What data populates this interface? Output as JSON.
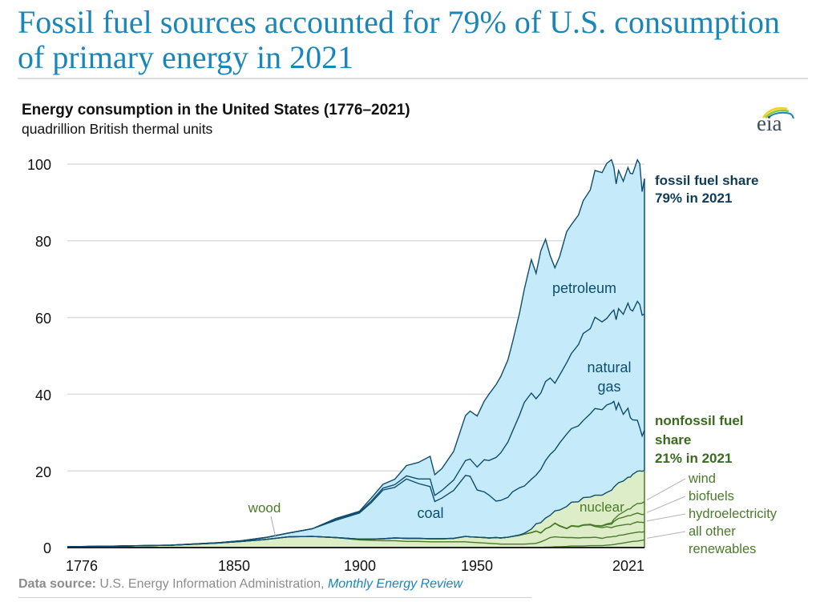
{
  "headline": "Fossil fuel sources accounted for 79% of U.S. consumption of primary energy in 2021",
  "logo_text": "eia",
  "logo_icon": "eia-logo-icon",
  "footer": {
    "label": "Data source:",
    "text": " U.S. Energy Information Administration, ",
    "link": "Monthly Energy Review"
  },
  "colors": {
    "fossil_fill": "#c5ebfb",
    "fossil_line": "#0f4c6e",
    "nonfossil_fill": "#dcedc8",
    "nonfossil_line": "#4a7a2a",
    "headline": "#1a86b8",
    "fossil_label": "#0e3b57",
    "nonfossil_label": "#3a6a1f"
  },
  "chart_data": {
    "type": "area",
    "title": "Energy consumption in the United States (1776–2021)",
    "subtitle": "quadrillion British thermal units",
    "xlabel": "",
    "ylabel": "quadrillion British thermal units",
    "xlim": [
      1776,
      2021
    ],
    "ylim": [
      0,
      100
    ],
    "grid": true,
    "x_ticks": [
      "1776",
      "1850",
      "1900",
      "1950",
      "2021"
    ],
    "y_ticks": [
      "0",
      "20",
      "40",
      "60",
      "80",
      "100"
    ],
    "stacked": true,
    "x": [
      1776,
      1800,
      1820,
      1840,
      1850,
      1860,
      1870,
      1880,
      1890,
      1900,
      1905,
      1910,
      1915,
      1920,
      1925,
      1930,
      1932,
      1935,
      1940,
      1945,
      1947,
      1950,
      1953,
      1955,
      1958,
      1960,
      1963,
      1965,
      1968,
      1970,
      1973,
      1975,
      1977,
      1979,
      1981,
      1983,
      1985,
      1988,
      1990,
      1993,
      1995,
      1998,
      2000,
      2003,
      2005,
      2007,
      2008,
      2009,
      2010,
      2012,
      2014,
      2015,
      2016,
      2018,
      2019,
      2020,
      2021
    ],
    "series": [
      {
        "name": "all other renewables",
        "values": [
          0,
          0,
          0,
          0,
          0,
          0,
          0,
          0,
          0,
          0,
          0,
          0,
          0,
          0,
          0,
          0,
          0,
          0,
          0,
          0,
          0,
          0,
          0,
          0,
          0,
          0,
          0,
          0,
          0,
          0,
          0,
          0,
          0,
          0.1,
          0.1,
          0.2,
          0.2,
          0.3,
          0.4,
          0.4,
          0.4,
          0.5,
          0.5,
          0.5,
          0.6,
          0.7,
          0.8,
          0.9,
          1.0,
          1.2,
          1.4,
          1.5,
          1.6,
          1.7,
          1.8,
          1.9,
          2.0
        ]
      },
      {
        "name": "wood",
        "values": [
          0.2,
          0.4,
          0.6,
          1.2,
          1.6,
          2.1,
          2.8,
          2.9,
          2.6,
          2.0,
          1.9,
          1.8,
          1.8,
          1.6,
          1.6,
          1.5,
          1.5,
          1.5,
          1.5,
          1.5,
          1.4,
          1.3,
          1.2,
          1.1,
          1.0,
          0.9,
          0.9,
          0.9,
          0.9,
          0.9,
          1.0,
          1.1,
          1.5,
          1.9,
          2.5,
          2.6,
          2.5,
          2.3,
          2.2,
          2.1,
          2.2,
          2.1,
          2.2,
          1.9,
          2.1,
          2.1,
          2.1,
          2.0,
          2.2,
          2.1,
          2.2,
          2.2,
          2.2,
          2.3,
          2.3,
          2.1,
          2.2
        ]
      },
      {
        "name": "hydroelectricity",
        "values": [
          0,
          0,
          0,
          0,
          0,
          0,
          0,
          0,
          0,
          0.2,
          0.3,
          0.5,
          0.7,
          0.8,
          0.8,
          0.8,
          0.8,
          0.8,
          0.9,
          1.4,
          1.4,
          1.4,
          1.4,
          1.4,
          1.6,
          1.6,
          1.8,
          2.0,
          2.3,
          2.6,
          2.9,
          3.2,
          2.3,
          2.9,
          2.8,
          3.5,
          2.9,
          2.3,
          3.0,
          2.9,
          3.2,
          3.3,
          2.8,
          2.8,
          2.7,
          2.4,
          2.5,
          2.7,
          2.5,
          2.6,
          2.5,
          2.3,
          2.5,
          2.7,
          2.5,
          2.6,
          2.3
        ]
      },
      {
        "name": "biofuels",
        "values": [
          0,
          0,
          0,
          0,
          0,
          0,
          0,
          0,
          0,
          0,
          0,
          0,
          0,
          0,
          0,
          0,
          0,
          0,
          0,
          0,
          0,
          0,
          0,
          0,
          0,
          0,
          0,
          0,
          0,
          0,
          0,
          0,
          0,
          0,
          0.01,
          0.06,
          0.09,
          0.1,
          0.1,
          0.12,
          0.1,
          0.15,
          0.2,
          0.4,
          0.6,
          0.9,
          1.4,
          1.6,
          1.9,
          2.0,
          2.2,
          2.3,
          2.3,
          2.3,
          2.2,
          2.0,
          2.2
        ]
      },
      {
        "name": "wind",
        "values": [
          0,
          0,
          0,
          0,
          0,
          0,
          0,
          0,
          0,
          0,
          0,
          0,
          0,
          0,
          0,
          0,
          0,
          0,
          0,
          0,
          0,
          0,
          0,
          0,
          0,
          0,
          0,
          0,
          0,
          0,
          0,
          0,
          0,
          0,
          0,
          0,
          0,
          0,
          0.03,
          0.03,
          0.03,
          0.03,
          0.06,
          0.1,
          0.18,
          0.34,
          0.55,
          0.72,
          0.92,
          1.34,
          1.73,
          1.78,
          2.1,
          2.5,
          2.7,
          3.0,
          3.3
        ]
      },
      {
        "name": "nuclear",
        "values": [
          0,
          0,
          0,
          0,
          0,
          0,
          0,
          0,
          0,
          0,
          0,
          0,
          0,
          0,
          0,
          0,
          0,
          0,
          0,
          0,
          0,
          0,
          0,
          0,
          0,
          0,
          0,
          0.04,
          0.1,
          0.24,
          0.9,
          1.9,
          2.7,
          2.8,
          3.0,
          3.2,
          4.1,
          5.7,
          6.1,
          6.4,
          7.1,
          7.1,
          7.9,
          7.96,
          8.2,
          8.5,
          8.4,
          8.4,
          8.4,
          8.1,
          8.3,
          8.3,
          8.4,
          8.4,
          8.5,
          8.3,
          8.1
        ]
      },
      {
        "name": "coal",
        "values": [
          0,
          0.01,
          0.02,
          0.07,
          0.2,
          0.5,
          1.0,
          2.0,
          4.5,
          6.8,
          9.5,
          12.7,
          13.2,
          15.5,
          14.3,
          13.6,
          9.7,
          10.6,
          12.5,
          15.9,
          15.8,
          12.3,
          11.9,
          11.2,
          9.5,
          9.8,
          10.4,
          11.6,
          12.3,
          12.3,
          13.0,
          12.7,
          13.9,
          15.0,
          15.9,
          15.9,
          17.5,
          18.9,
          19.2,
          19.8,
          20.1,
          21.7,
          22.6,
          22.3,
          22.8,
          22.7,
          22.4,
          19.7,
          20.8,
          17.4,
          18.0,
          15.5,
          14.2,
          13.3,
          11.3,
          9.2,
          10.5
        ]
      },
      {
        "name": "natural gas",
        "values": [
          0,
          0,
          0,
          0,
          0,
          0,
          0,
          0,
          0.3,
          0.25,
          0.4,
          0.5,
          0.7,
          0.8,
          1.2,
          2.0,
          1.6,
          2.0,
          2.7,
          3.9,
          4.5,
          6.0,
          8.4,
          9.0,
          11.4,
          12.4,
          14.4,
          15.8,
          19.0,
          21.8,
          22.5,
          19.9,
          19.9,
          20.6,
          19.9,
          17.4,
          17.7,
          18.6,
          19.6,
          21.2,
          22.7,
          22.2,
          23.8,
          22.9,
          22.6,
          23.7,
          23.8,
          23.4,
          24.6,
          26.1,
          27.4,
          28.2,
          28.4,
          31.0,
          32.1,
          31.5,
          30.3
        ]
      },
      {
        "name": "petroleum",
        "values": [
          0,
          0,
          0,
          0,
          0,
          0,
          0,
          0,
          0.2,
          0.2,
          0.8,
          1.0,
          1.4,
          2.7,
          4.3,
          5.9,
          5.4,
          5.7,
          7.5,
          11.7,
          12.5,
          13.3,
          15.3,
          17.3,
          19.0,
          19.9,
          21.4,
          23.2,
          26.6,
          29.5,
          34.8,
          32.7,
          37.1,
          37.1,
          31.9,
          30.1,
          30.9,
          34.2,
          33.6,
          33.8,
          34.6,
          36.2,
          38.3,
          38.9,
          40.4,
          39.8,
          37.3,
          35.4,
          36.0,
          34.7,
          35.4,
          35.5,
          35.8,
          36.9,
          36.7,
          32.2,
          35.3
        ]
      }
    ],
    "annotations": [
      {
        "text": "fossil fuel share",
        "group": "fossil"
      },
      {
        "text": "79% in 2021",
        "group": "fossil"
      },
      {
        "text": "nonfossil fuel",
        "group": "nonfossil"
      },
      {
        "text": "share",
        "group": "nonfossil"
      },
      {
        "text": "21% in 2021",
        "group": "nonfossil"
      }
    ],
    "series_labels": {
      "petroleum": "petroleum",
      "natural_gas_1": "natural",
      "natural_gas_2": "gas",
      "coal": "coal",
      "wood": "wood",
      "nuclear": "nuclear",
      "wind": "wind",
      "biofuels": "biofuels",
      "hydroelectricity": "hydroelectricity",
      "all_other_1": "all other",
      "all_other_2": "renewables"
    }
  }
}
